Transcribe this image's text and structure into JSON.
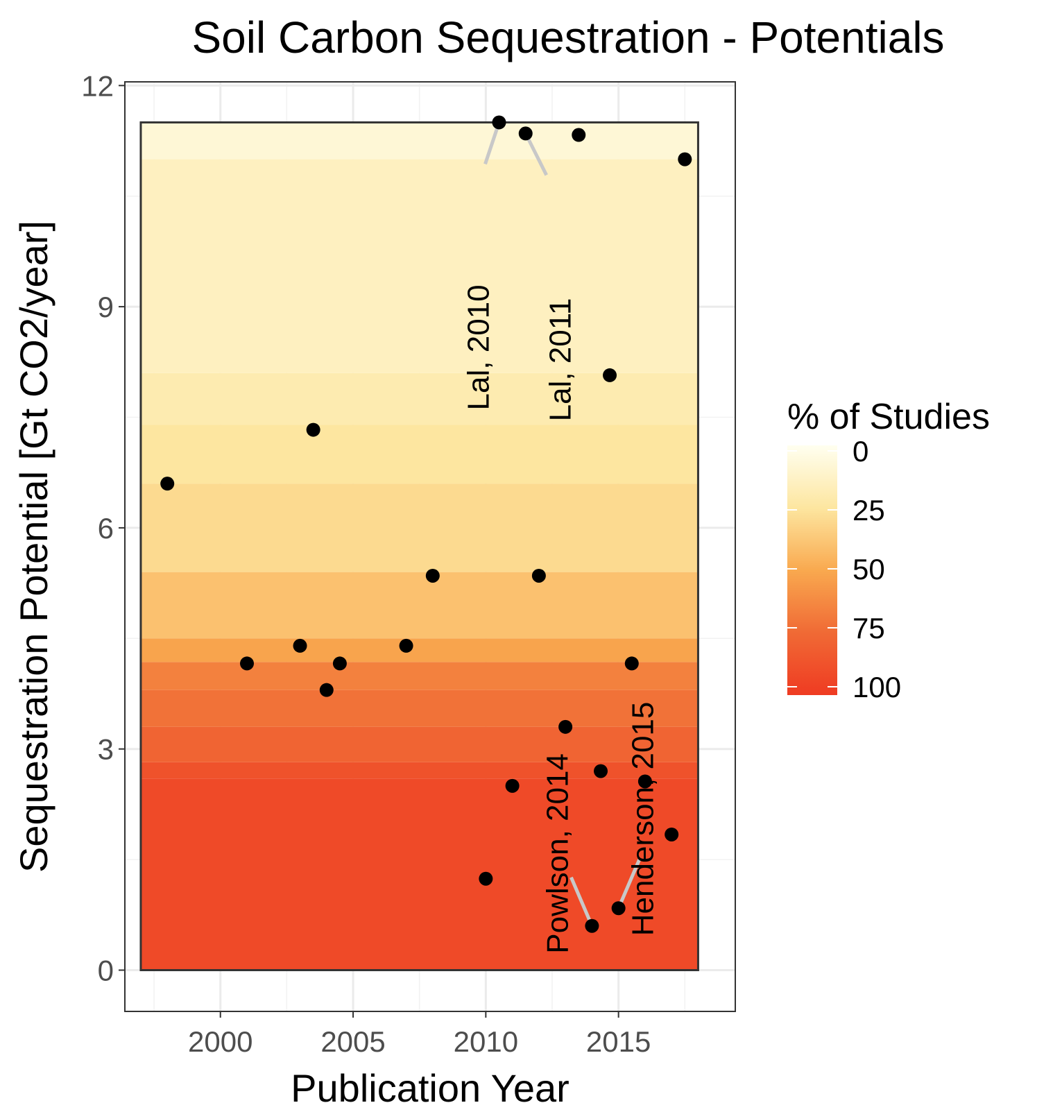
{
  "chart_data": {
    "type": "scatter",
    "title": "Soil Carbon Sequestration - Potentials",
    "xlabel": "Publication Year",
    "ylabel": "Sequestration Potential [Gt CO2/year]",
    "xlim": [
      1996.4,
      2019.4
    ],
    "ylim": [
      -0.56,
      12.05
    ],
    "x_ticks": [
      2000,
      2005,
      2010,
      2015
    ],
    "y_ticks": [
      0,
      3,
      6,
      9,
      12
    ],
    "grid": true,
    "points": [
      {
        "x": 1998,
        "y": 6.6
      },
      {
        "x": 2001,
        "y": 4.16
      },
      {
        "x": 2003,
        "y": 4.4
      },
      {
        "x": 2003.5,
        "y": 7.33
      },
      {
        "x": 2004,
        "y": 3.8
      },
      {
        "x": 2004.5,
        "y": 4.16
      },
      {
        "x": 2007,
        "y": 4.4
      },
      {
        "x": 2008,
        "y": 5.35
      },
      {
        "x": 2010,
        "y": 1.24
      },
      {
        "x": 2010.5,
        "y": 11.5
      },
      {
        "x": 2011,
        "y": 2.5
      },
      {
        "x": 2011.5,
        "y": 11.35
      },
      {
        "x": 2012,
        "y": 5.35
      },
      {
        "x": 2013,
        "y": 3.3
      },
      {
        "x": 2013.5,
        "y": 11.33
      },
      {
        "x": 2014,
        "y": 0.6
      },
      {
        "x": 2014.33,
        "y": 2.7
      },
      {
        "x": 2014.67,
        "y": 8.07
      },
      {
        "x": 2015,
        "y": 0.84
      },
      {
        "x": 2015.5,
        "y": 4.16
      },
      {
        "x": 2016,
        "y": 2.56
      },
      {
        "x": 2017,
        "y": 1.84
      },
      {
        "x": 2017.5,
        "y": 11.0
      }
    ],
    "labelled_points": [
      {
        "label": "Lal, 2010",
        "x": 2010.5,
        "y": 11.5
      },
      {
        "label": "Lal, 2011",
        "x": 2011.5,
        "y": 11.35
      },
      {
        "label": "Powlson, 2014",
        "x": 2014,
        "y": 0.6
      },
      {
        "label": "Henderson, 2015",
        "x": 2015,
        "y": 0.84
      }
    ],
    "background_bands": {
      "x_range": [
        1997,
        2018
      ],
      "bands": [
        {
          "y0": 0,
          "y1": 2.6,
          "pct": 92
        },
        {
          "y0": 2.6,
          "y1": 2.82,
          "pct": 88
        },
        {
          "y0": 2.82,
          "y1": 3.3,
          "pct": 78
        },
        {
          "y0": 3.3,
          "y1": 3.8,
          "pct": 72
        },
        {
          "y0": 3.8,
          "y1": 4.18,
          "pct": 66
        },
        {
          "y0": 4.18,
          "y1": 4.5,
          "pct": 52
        },
        {
          "y0": 4.5,
          "y1": 5.4,
          "pct": 40
        },
        {
          "y0": 5.4,
          "y1": 6.6,
          "pct": 30
        },
        {
          "y0": 6.6,
          "y1": 7.4,
          "pct": 25
        },
        {
          "y0": 7.4,
          "y1": 8.1,
          "pct": 20
        },
        {
          "y0": 8.1,
          "y1": 11.0,
          "pct": 15
        },
        {
          "y0": 11.0,
          "y1": 11.5,
          "pct": 8
        }
      ]
    },
    "legend": {
      "title": "% of Studies",
      "labels": [
        "0",
        "25",
        "50",
        "75",
        "100"
      ],
      "values": [
        0,
        25,
        50,
        75,
        100
      ],
      "placement": "right",
      "colors": [
        "#fffff0",
        "#fde6a0",
        "#f9a94f",
        "#f06a35",
        "#ef3b22"
      ]
    },
    "point_color": "#000000",
    "segment_color": "#c8c8c8"
  }
}
